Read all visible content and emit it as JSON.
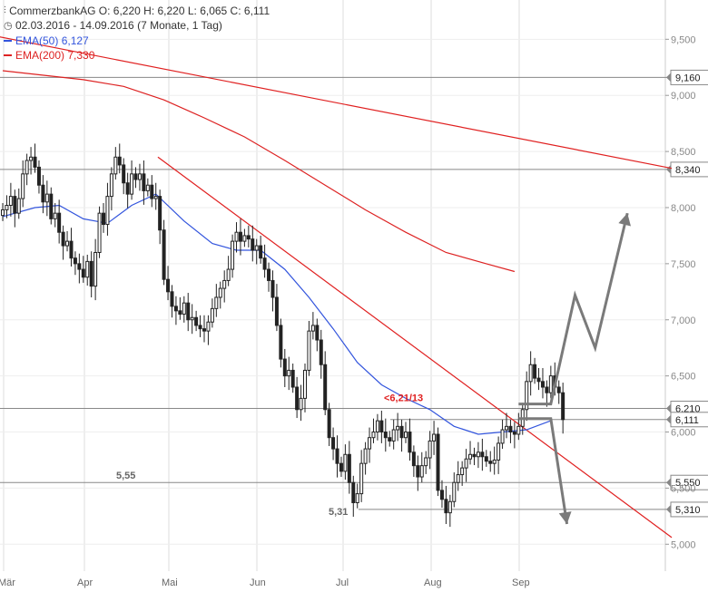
{
  "header": {
    "title_line": "CommerzbankAG   O: 6,220   H: 6,220   L: 6,065   C: 6,111",
    "period_line": "02.03.2016 - 14.09.2016 (7 Monate, 1 Tag)",
    "ema50_label": "EMA(50)",
    "ema50_value": "6,127",
    "ema200_label": "EMA(200)",
    "ema200_value": "7,330"
  },
  "colors": {
    "ema50": "#3355dd",
    "ema200": "#dd2222",
    "trendline": "#e02020",
    "arrows": "#7a7a7a",
    "candle": "#222222",
    "grid": "#aaaaaa"
  },
  "chart_data": {
    "type": "candlestick",
    "x_labels": [
      "Mär",
      "Apr",
      "Mai",
      "Jun",
      "Jul",
      "Aug",
      "Sep"
    ],
    "y_ticks": [
      "5,000",
      "5,500",
      "6,000",
      "6,500",
      "7,000",
      "7,500",
      "8,000",
      "8,500",
      "9,000",
      "9,500"
    ],
    "ylim": [
      4.76,
      9.85
    ],
    "x_range": [
      "2016-03-02",
      "2016-09-14"
    ],
    "levels": [
      {
        "value": 9.16,
        "label": "9,160"
      },
      {
        "value": 8.34,
        "label": "8,340"
      },
      {
        "value": 6.21,
        "label": "6,210"
      },
      {
        "value": 6.111,
        "label": "6,111"
      },
      {
        "value": 5.55,
        "label": "5,550"
      },
      {
        "value": 5.31,
        "label": "5,310"
      }
    ],
    "annotations": [
      {
        "text": "5,55",
        "value": 5.55
      },
      {
        "text": "5,31",
        "value": 5.31
      },
      {
        "text": "<6,21/13",
        "value": 6.21
      }
    ],
    "closes": [
      7.98,
      8.02,
      8.1,
      7.95,
      8.08,
      8.3,
      8.42,
      8.45,
      8.36,
      8.2,
      8.05,
      8.12,
      7.9,
      7.95,
      7.78,
      7.66,
      7.7,
      7.55,
      7.5,
      7.45,
      7.38,
      7.52,
      7.3,
      7.6,
      7.95,
      7.85,
      8.1,
      8.3,
      8.45,
      8.38,
      8.22,
      8.12,
      8.3,
      8.25,
      8.3,
      8.15,
      8.2,
      8.08,
      8.1,
      7.8,
      7.36,
      7.25,
      7.12,
      7.08,
      7.05,
      7.15,
      7.0,
      7.02,
      6.95,
      6.92,
      6.9,
      6.98,
      7.1,
      7.2,
      7.28,
      7.35,
      7.45,
      7.7,
      7.78,
      7.7,
      7.75,
      7.72,
      7.62,
      7.66,
      7.55,
      7.45,
      7.35,
      7.2,
      6.95,
      6.65,
      6.5,
      6.55,
      6.4,
      6.2,
      6.3,
      6.55,
      6.9,
      6.95,
      6.82,
      6.6,
      6.2,
      5.95,
      5.85,
      5.72,
      5.65,
      5.8,
      5.55,
      5.37,
      5.45,
      5.72,
      5.85,
      5.95,
      6.0,
      6.1,
      6.0,
      5.95,
      5.92,
      6.02,
      6.05,
      5.95,
      6.0,
      5.82,
      5.7,
      5.6,
      5.7,
      5.77,
      5.92,
      5.98,
      5.48,
      5.4,
      5.28,
      5.38,
      5.55,
      5.62,
      5.68,
      5.76,
      5.8,
      5.78,
      5.82,
      5.78,
      5.74,
      5.72,
      5.75,
      5.9,
      6.02,
      6.05,
      6.0,
      5.98,
      6.05,
      6.2,
      6.45,
      6.6,
      6.48,
      6.45,
      6.4,
      6.35,
      6.5,
      6.4,
      6.35,
      6.111
    ],
    "ema50": [
      [
        0,
        7.92
      ],
      [
        8,
        8.0
      ],
      [
        14,
        8.02
      ],
      [
        20,
        7.9
      ],
      [
        26,
        7.86
      ],
      [
        32,
        8.02
      ],
      [
        38,
        8.12
      ],
      [
        45,
        7.88
      ],
      [
        52,
        7.68
      ],
      [
        58,
        7.62
      ],
      [
        64,
        7.62
      ],
      [
        70,
        7.45
      ],
      [
        76,
        7.2
      ],
      [
        82,
        6.92
      ],
      [
        88,
        6.62
      ],
      [
        94,
        6.42
      ],
      [
        100,
        6.3
      ],
      [
        106,
        6.2
      ],
      [
        112,
        6.05
      ],
      [
        118,
        5.98
      ],
      [
        124,
        6.0
      ],
      [
        130,
        6.02
      ],
      [
        136,
        6.1
      ]
    ],
    "ema200": [
      [
        0,
        9.22
      ],
      [
        20,
        9.14
      ],
      [
        30,
        9.08
      ],
      [
        40,
        8.96
      ],
      [
        50,
        8.8
      ],
      [
        60,
        8.63
      ],
      [
        70,
        8.42
      ],
      [
        80,
        8.2
      ],
      [
        90,
        7.98
      ],
      [
        100,
        7.78
      ],
      [
        110,
        7.6
      ],
      [
        120,
        7.5
      ],
      [
        127,
        7.43
      ]
    ],
    "trendlines": [
      {
        "from": [
          38.5,
          8.45
        ],
        "to": [
          166,
          5.06
        ]
      },
      {
        "from": [
          -2,
          9.53
        ],
        "to": [
          166,
          8.35
        ]
      }
    ],
    "projections": [
      {
        "from": [
          128,
          6.25
        ],
        "path": [
          [
            136,
            6.25
          ],
          [
            142,
            7.22
          ],
          [
            147,
            6.75
          ],
          [
            155,
            7.95
          ]
        ]
      },
      {
        "from": [
          128,
          6.12
        ],
        "path": [
          [
            136,
            6.12
          ],
          [
            140,
            5.18
          ]
        ]
      }
    ]
  }
}
